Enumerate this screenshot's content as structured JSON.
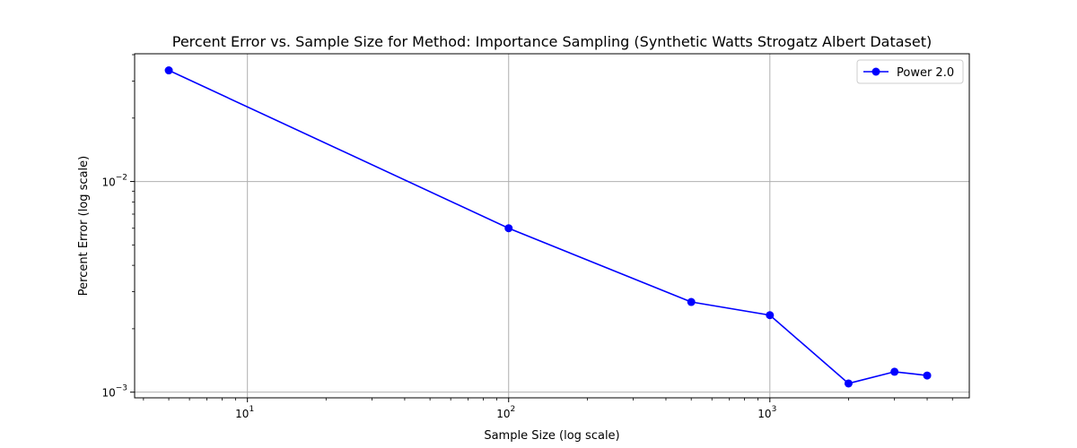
{
  "chart_data": {
    "type": "line",
    "title": "Percent Error vs. Sample Size for Method: Importance Sampling (Synthetic Watts Strogatz Albert Dataset)",
    "xlabel": "Sample Size (log scale)",
    "ylabel": "Percent Error (log scale)",
    "xscale": "log",
    "yscale": "log",
    "xlim": [
      3.7,
      5800
    ],
    "ylim": [
      0.00094,
      0.0404
    ],
    "grid": true,
    "legend_position": "top-right",
    "x_major_ticks": [
      {
        "value": 10,
        "base": "10",
        "exp": "1"
      },
      {
        "value": 100,
        "base": "10",
        "exp": "2"
      },
      {
        "value": 1000,
        "base": "10",
        "exp": "3"
      }
    ],
    "y_major_ticks": [
      {
        "value": 0.01,
        "base": "10",
        "exp": "−2"
      },
      {
        "value": 0.001,
        "base": "10",
        "exp": "−3"
      }
    ],
    "series": [
      {
        "name": "Power 2.0",
        "color": "#0000ff",
        "marker": "circle",
        "x": [
          5,
          100,
          500,
          1000,
          2000,
          3000,
          4000
        ],
        "y": [
          0.0337,
          0.006,
          0.00268,
          0.00232,
          0.0011,
          0.00125,
          0.0012
        ]
      }
    ]
  }
}
